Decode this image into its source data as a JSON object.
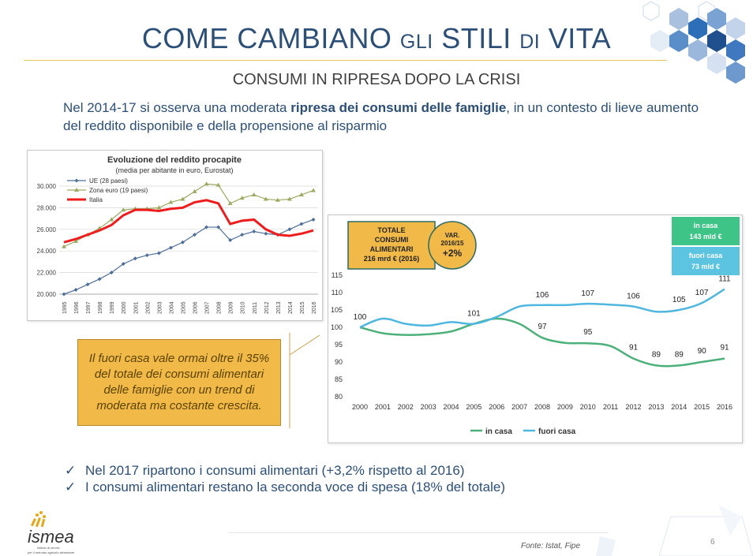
{
  "header": {
    "title_part1": "COME CAMBIANO ",
    "title_part2": "GLI",
    "title_part3": " STILI ",
    "title_part4": "DI",
    "title_part5": " VITA",
    "subtitle": "CONSUMI IN RIPRESA DOPO LA CRISI"
  },
  "intro": {
    "text_before": "Nel 2014-17 si osserva una moderata ",
    "text_bold": "ripresa dei consumi delle famiglie",
    "text_after": ", in un contesto di lieve aumento del reddito disponibile e della propensione al risparmio"
  },
  "callout": {
    "text": "Il fuori casa vale ormai oltre il 35% del totale dei consumi alimentari delle famiglie con un trend di moderata ma costante crescita."
  },
  "bullets": [
    "Nel 2017 ripartono i consumi alimentari (+3,2% rispetto al 2016)",
    "I consumi alimentari restano la seconda voce di spesa (18% del totale)"
  ],
  "footer": {
    "source": "Fonte: Istat, Fipe",
    "page": "6",
    "logo_name": "ismea",
    "logo_tagline_1": "Istituto di servizi",
    "logo_tagline_2": "per il mercato agricolo alimentare"
  },
  "colors": {
    "title_blue": "#2c4f77",
    "ue_line": "#4f6f98",
    "zona_euro_line": "#9aab60",
    "italia_line": "#ee1c1c",
    "in_casa_line": "#4cb07a",
    "fuori_casa_line": "#4fb7df",
    "callout_bg": "#f1b947",
    "in_casa_box": "#3fc487",
    "fuori_casa_box": "#5cc4e0"
  },
  "chart_data": [
    {
      "type": "line",
      "title": "Evoluzione del reddito procapite",
      "subtitle": "(media per abitante in euro, Eurostat)",
      "x": [
        "1995",
        "1996",
        "1997",
        "1998",
        "1999",
        "2000",
        "2001",
        "2002",
        "2003",
        "2004",
        "2005",
        "2006",
        "2007",
        "2008",
        "2009",
        "2010",
        "2011",
        "2012",
        "2013",
        "2014",
        "2015",
        "2016"
      ],
      "ylim": [
        20000,
        30000
      ],
      "yticks": [
        "20.000",
        "22.000",
        "24.000",
        "26.000",
        "28.000",
        "30.000"
      ],
      "legend_position": "top-left",
      "series": [
        {
          "name": "UE (28 paesi)",
          "marker": "diamond",
          "values": [
            20000,
            20400,
            20900,
            21400,
            22000,
            22800,
            23300,
            23600,
            23800,
            24300,
            24800,
            25500,
            26200,
            26200,
            25000,
            25500,
            25800,
            25600,
            25500,
            26000,
            26500,
            26900
          ]
        },
        {
          "name": "Zona euro (19 paesi)",
          "marker": "triangle",
          "values": [
            24400,
            24900,
            25500,
            26100,
            26900,
            27800,
            27900,
            27900,
            28000,
            28500,
            28800,
            29500,
            30200,
            30100,
            28400,
            28900,
            29200,
            28800,
            28700,
            28800,
            29200,
            29600
          ]
        },
        {
          "name": "Italia",
          "marker": "none",
          "values": [
            24800,
            25100,
            25500,
            25900,
            26400,
            27300,
            27800,
            27800,
            27700,
            27900,
            28000,
            28500,
            28700,
            28400,
            26500,
            26800,
            26900,
            26000,
            25500,
            25400,
            25600,
            25900
          ]
        }
      ]
    },
    {
      "type": "line",
      "x": [
        "2000",
        "2001",
        "2002",
        "2003",
        "2004",
        "2005",
        "2006",
        "2007",
        "2008",
        "2009",
        "2010",
        "2011",
        "2012",
        "2013",
        "2014",
        "2015",
        "2016"
      ],
      "ylim": [
        80,
        115
      ],
      "yticks": [
        "80",
        "85",
        "90",
        "95",
        "100",
        "105",
        "110",
        "115"
      ],
      "legend_position": "bottom",
      "series": [
        {
          "name": "in casa",
          "values": [
            100,
            98.3,
            97.8,
            98,
            98.8,
            101,
            102.5,
            101,
            97,
            95.5,
            95.4,
            94.6,
            91,
            89,
            89,
            90,
            91
          ],
          "labels": {
            "0": "100",
            "8": "97",
            "10": "95",
            "12": "91",
            "13": "89",
            "14": "89",
            "15": "90",
            "16": "91"
          }
        },
        {
          "name": "fuori casa",
          "values": [
            100,
            102.5,
            101,
            100.5,
            101.5,
            101,
            103,
            106,
            106.4,
            106.4,
            106.8,
            106.5,
            106,
            104.5,
            105,
            107,
            111
          ],
          "labels": {
            "5": "101",
            "8": "106",
            "10": "107",
            "12": "106",
            "14": "105",
            "15": "107",
            "16": "111"
          }
        }
      ],
      "boxes": {
        "totale": "TOTALE CONSUMI ALIMENTARI 216 mrd € (2016)",
        "var_title": "VAR. 2016/15",
        "var_value": "+2%",
        "in_casa_title": "in casa",
        "in_casa_value": "143 mld €",
        "fuori_casa_title": "fuori casa",
        "fuori_casa_value": "73 mld €"
      }
    }
  ]
}
